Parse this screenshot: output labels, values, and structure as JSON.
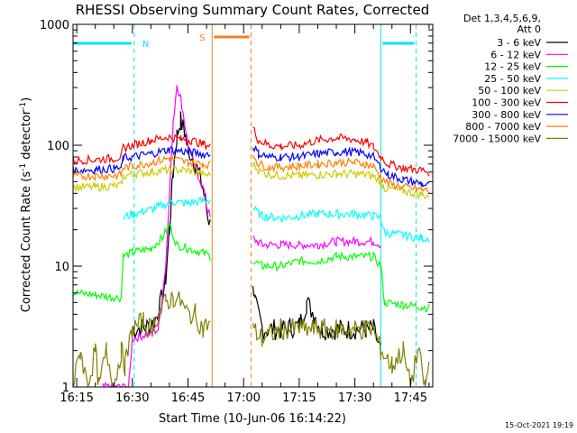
{
  "chart_data": {
    "type": "line",
    "title": "RHESSI Observing Summary Count Rates, Corrected",
    "xlabel": "Start Time (10-Jun-06 16:14:22)",
    "ylabel_text": "Corrected Count Rate (s",
    "ylabel_sup1": "-1",
    "ylabel_mid": " detector",
    "ylabel_sup2": "-1",
    "ylabel_end": ")",
    "y_scale": "log",
    "ylim": [
      1,
      1000
    ],
    "y_ticks": [
      {
        "value": 1,
        "label": "1"
      },
      {
        "value": 10,
        "label": "10"
      },
      {
        "value": 100,
        "label": "100"
      },
      {
        "value": 1000,
        "label": "1000"
      }
    ],
    "x_minutes_range": [
      -1,
      96
    ],
    "x_ticks": [
      {
        "minute": 0,
        "label": "16:15"
      },
      {
        "minute": 15,
        "label": "16:30"
      },
      {
        "minute": 30,
        "label": "16:45"
      },
      {
        "minute": 45,
        "label": "17:00"
      },
      {
        "minute": 60,
        "label": "17:15"
      },
      {
        "minute": 75,
        "label": "17:30"
      },
      {
        "minute": 90,
        "label": "17:45"
      }
    ],
    "legend_header": [
      "Det 1,3,4,5,6,9,",
      "Att 0"
    ],
    "legend_placement": "right",
    "markers": {
      "night": [
        {
          "label": "N",
          "start_minute": 15.5,
          "end_minute": 82.0
        },
        {
          "start_minute": 91.5
        }
      ],
      "saa": {
        "label": "S",
        "start_minute": 36.5,
        "end_minute": 47.0
      }
    },
    "data_gaps": [
      [
        36.5,
        47.0
      ]
    ],
    "series": [
      {
        "name": "3 - 6 keV",
        "color": "#000000",
        "points": [
          [
            15,
            3
          ],
          [
            20,
            3.2
          ],
          [
            22,
            4
          ],
          [
            24,
            8
          ],
          [
            25,
            20
          ],
          [
            26,
            60
          ],
          [
            27,
            120
          ],
          [
            28,
            160
          ],
          [
            29,
            130
          ],
          [
            30,
            95
          ],
          [
            32,
            70
          ],
          [
            34,
            45
          ],
          [
            35,
            30
          ],
          [
            36,
            22
          ],
          [
            47.5,
            8
          ],
          [
            48,
            5
          ],
          [
            50,
            3
          ],
          [
            55,
            3
          ],
          [
            60,
            3.2
          ],
          [
            62,
            5
          ],
          [
            64,
            4
          ],
          [
            66,
            3
          ],
          [
            70,
            3
          ],
          [
            78,
            3
          ],
          [
            80,
            3
          ],
          [
            82,
            2
          ]
        ]
      },
      {
        "name": "6 - 12 keV",
        "color": "#ff00ff",
        "points": [
          [
            7,
            1
          ],
          [
            14,
            1
          ],
          [
            15,
            2.5
          ],
          [
            20,
            2.8
          ],
          [
            22,
            3
          ],
          [
            24,
            10
          ],
          [
            25,
            40
          ],
          [
            26,
            150
          ],
          [
            27,
            320
          ],
          [
            28,
            250
          ],
          [
            29,
            160
          ],
          [
            30,
            100
          ],
          [
            32,
            65
          ],
          [
            34,
            45
          ],
          [
            35,
            32
          ],
          [
            36,
            25
          ],
          [
            47.5,
            17
          ],
          [
            50,
            15
          ],
          [
            55,
            15
          ],
          [
            60,
            15
          ],
          [
            65,
            15
          ],
          [
            70,
            16
          ],
          [
            75,
            16
          ],
          [
            80,
            16
          ],
          [
            82,
            15
          ]
        ]
      },
      {
        "name": "12 - 25 keV",
        "color": "#00ff00",
        "points": [
          [
            -1,
            6
          ],
          [
            5,
            5.8
          ],
          [
            10,
            5.5
          ],
          [
            12,
            5.5
          ],
          [
            12.5,
            12
          ],
          [
            15,
            13
          ],
          [
            20,
            14
          ],
          [
            23,
            17
          ],
          [
            25,
            22
          ],
          [
            27,
            15
          ],
          [
            30,
            14
          ],
          [
            34,
            13
          ],
          [
            36,
            12
          ],
          [
            47.5,
            11
          ],
          [
            50,
            10
          ],
          [
            55,
            10
          ],
          [
            60,
            11
          ],
          [
            65,
            11
          ],
          [
            70,
            12
          ],
          [
            75,
            12
          ],
          [
            80,
            12
          ],
          [
            82,
            10
          ],
          [
            83,
            5
          ],
          [
            88,
            4.8
          ],
          [
            93,
            4.6
          ],
          [
            95,
            4.5
          ]
        ]
      },
      {
        "name": "25 - 50 keV",
        "color": "#00ffff",
        "points": [
          [
            12.5,
            25
          ],
          [
            15,
            27
          ],
          [
            18,
            28
          ],
          [
            22,
            31
          ],
          [
            26,
            34
          ],
          [
            30,
            33
          ],
          [
            34,
            35
          ],
          [
            36,
            35
          ],
          [
            47.5,
            30
          ],
          [
            50,
            26
          ],
          [
            55,
            25
          ],
          [
            60,
            26
          ],
          [
            65,
            27
          ],
          [
            70,
            27
          ],
          [
            75,
            27
          ],
          [
            80,
            26
          ],
          [
            82,
            25
          ],
          [
            83,
            19
          ],
          [
            88,
            18
          ],
          [
            93,
            17
          ],
          [
            95,
            17
          ]
        ]
      },
      {
        "name": "50 - 100 keV",
        "color": "#cccc00",
        "points": [
          [
            -1,
            45
          ],
          [
            5,
            45
          ],
          [
            10,
            46
          ],
          [
            12,
            47
          ],
          [
            12.5,
            55
          ],
          [
            15,
            58
          ],
          [
            20,
            60
          ],
          [
            25,
            63
          ],
          [
            30,
            62
          ],
          [
            34,
            58
          ],
          [
            36,
            56
          ],
          [
            47.5,
            70
          ],
          [
            49,
            62
          ],
          [
            51,
            58
          ],
          [
            55,
            56
          ],
          [
            60,
            56
          ],
          [
            65,
            57
          ],
          [
            70,
            58
          ],
          [
            75,
            58
          ],
          [
            78,
            57
          ],
          [
            80,
            55
          ],
          [
            82,
            50
          ],
          [
            83,
            44
          ],
          [
            88,
            42
          ],
          [
            93,
            39
          ],
          [
            95,
            38
          ]
        ]
      },
      {
        "name": "100 - 300 keV",
        "color": "#ff0000",
        "points": [
          [
            -1,
            75
          ],
          [
            5,
            76
          ],
          [
            10,
            78
          ],
          [
            12,
            80
          ],
          [
            12.5,
            95
          ],
          [
            15,
            100
          ],
          [
            20,
            110
          ],
          [
            25,
            118
          ],
          [
            28,
            112
          ],
          [
            31,
            110
          ],
          [
            34,
            102
          ],
          [
            36,
            100
          ],
          [
            47.5,
            140
          ],
          [
            49,
            110
          ],
          [
            52,
            100
          ],
          [
            55,
            98
          ],
          [
            60,
            100
          ],
          [
            65,
            110
          ],
          [
            70,
            115
          ],
          [
            75,
            112
          ],
          [
            78,
            105
          ],
          [
            80,
            97
          ],
          [
            82,
            80
          ],
          [
            84,
            70
          ],
          [
            88,
            65
          ],
          [
            93,
            62
          ],
          [
            95,
            60
          ]
        ]
      },
      {
        "name": "300 - 800 keV",
        "color": "#0000ff",
        "points": [
          [
            -1,
            62
          ],
          [
            5,
            63
          ],
          [
            10,
            64
          ],
          [
            12,
            65
          ],
          [
            12.5,
            78
          ],
          [
            15,
            80
          ],
          [
            20,
            85
          ],
          [
            25,
            92
          ],
          [
            30,
            88
          ],
          [
            34,
            85
          ],
          [
            36,
            84
          ],
          [
            47.5,
            100
          ],
          [
            49,
            85
          ],
          [
            52,
            80
          ],
          [
            55,
            80
          ],
          [
            60,
            80
          ],
          [
            65,
            85
          ],
          [
            70,
            88
          ],
          [
            75,
            88
          ],
          [
            78,
            85
          ],
          [
            80,
            80
          ],
          [
            82,
            65
          ],
          [
            84,
            57
          ],
          [
            88,
            52
          ],
          [
            93,
            48
          ],
          [
            95,
            46
          ]
        ]
      },
      {
        "name": "800 - 7000 keV",
        "color": "#ff8000",
        "points": [
          [
            -1,
            55
          ],
          [
            5,
            56
          ],
          [
            10,
            56
          ],
          [
            12,
            57
          ],
          [
            12.5,
            65
          ],
          [
            15,
            67
          ],
          [
            20,
            72
          ],
          [
            25,
            78
          ],
          [
            30,
            72
          ],
          [
            34,
            70
          ],
          [
            36,
            69
          ],
          [
            47.5,
            85
          ],
          [
            49,
            70
          ],
          [
            52,
            66
          ],
          [
            55,
            66
          ],
          [
            60,
            67
          ],
          [
            65,
            70
          ],
          [
            70,
            72
          ],
          [
            75,
            72
          ],
          [
            78,
            70
          ],
          [
            80,
            67
          ],
          [
            82,
            55
          ],
          [
            84,
            48
          ],
          [
            88,
            45
          ],
          [
            93,
            43
          ],
          [
            95,
            42
          ]
        ]
      },
      {
        "name": "7000 - 15000 keV",
        "color": "#808000",
        "points": [
          [
            -1,
            1
          ],
          [
            1,
            2
          ],
          [
            3,
            1
          ],
          [
            5,
            2
          ],
          [
            6,
            1
          ],
          [
            8,
            2
          ],
          [
            10,
            1
          ],
          [
            12,
            2
          ],
          [
            13,
            1.5
          ],
          [
            15,
            3
          ],
          [
            18,
            3.5
          ],
          [
            20,
            3
          ],
          [
            22,
            4
          ],
          [
            24,
            5
          ],
          [
            26,
            5.5
          ],
          [
            28,
            5
          ],
          [
            30,
            4
          ],
          [
            32,
            4
          ],
          [
            34,
            3
          ],
          [
            36,
            3.5
          ],
          [
            47.5,
            3
          ],
          [
            50,
            2.5
          ],
          [
            55,
            3
          ],
          [
            60,
            3
          ],
          [
            65,
            3
          ],
          [
            70,
            3
          ],
          [
            75,
            3
          ],
          [
            80,
            3
          ],
          [
            82,
            2
          ],
          [
            85,
            1.5
          ],
          [
            88,
            2
          ],
          [
            90,
            1
          ],
          [
            92,
            2
          ],
          [
            94,
            1
          ],
          [
            95,
            1.5
          ]
        ]
      }
    ]
  },
  "footer": {
    "timestamp": "15-Oct-2021 19:19"
  }
}
